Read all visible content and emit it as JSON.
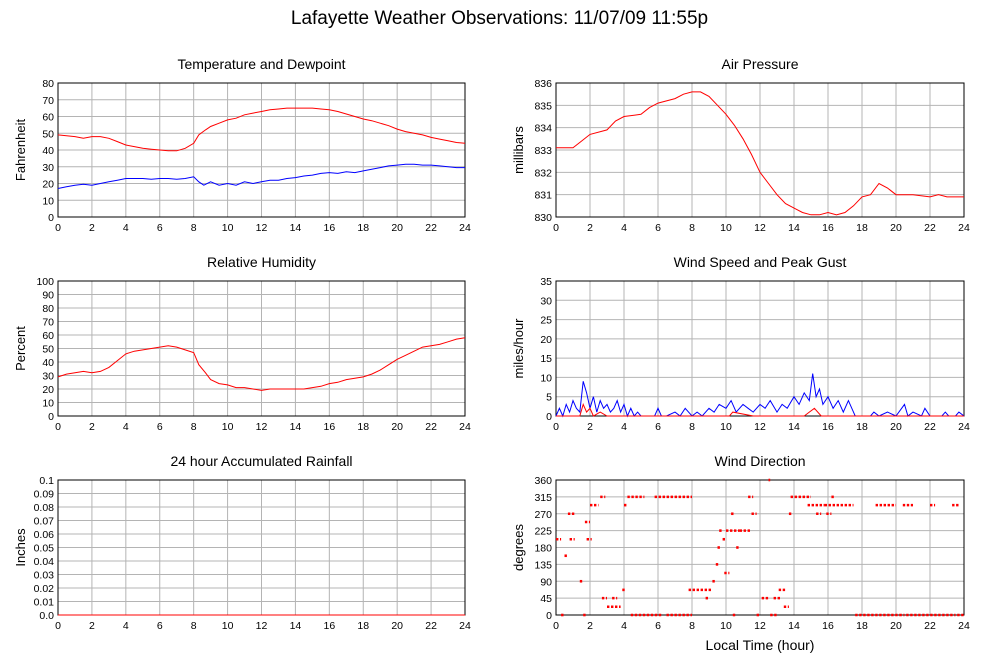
{
  "page": {
    "title": "Lafayette Weather Observations: 11/07/09 11:55p"
  },
  "colors": {
    "red": "#ff0000",
    "blue": "#0000ff",
    "grid": "#b4b4b4"
  },
  "chart_data": [
    {
      "id": "temperature",
      "type": "line",
      "title": "Temperature and Dewpoint",
      "ylabel": "Fahrenheit",
      "xlabel": "",
      "xlim": [
        0,
        24
      ],
      "ylim": [
        0,
        80
      ],
      "xticks": [
        0,
        2,
        4,
        6,
        8,
        10,
        12,
        14,
        16,
        18,
        20,
        22,
        24
      ],
      "yticks": [
        0,
        10,
        20,
        30,
        40,
        50,
        60,
        70,
        80
      ],
      "series": [
        {
          "color": "#ff0000",
          "x": [
            0,
            1,
            1.5,
            2,
            2.5,
            3,
            3.5,
            4,
            4.5,
            5,
            5.5,
            6,
            6.5,
            7,
            7.5,
            8,
            8.3,
            8.7,
            9,
            9.5,
            10,
            10.5,
            11,
            11.5,
            12,
            12.5,
            13,
            13.5,
            14,
            14.5,
            15,
            15.5,
            16,
            16.5,
            17,
            17.5,
            18,
            18.5,
            19,
            19.5,
            20,
            20.5,
            21,
            21.5,
            22,
            22.5,
            23,
            23.5,
            24
          ],
          "y": [
            49,
            48,
            47,
            48,
            48,
            47,
            45,
            43,
            42,
            41,
            40.5,
            40,
            39.5,
            39.5,
            41,
            44,
            49,
            52,
            54,
            56,
            58,
            59,
            61,
            62,
            63,
            64,
            64.5,
            65,
            65,
            65,
            65,
            64.5,
            64,
            63,
            61.5,
            60,
            58.5,
            57.5,
            56,
            54.5,
            52.5,
            51,
            50,
            49,
            47.5,
            46.5,
            45.5,
            44.5,
            44
          ]
        },
        {
          "color": "#0000ff",
          "x": [
            0,
            0.5,
            1,
            1.5,
            2,
            2.5,
            3,
            3.5,
            4,
            4.5,
            5,
            5.5,
            6,
            6.5,
            7,
            7.5,
            8,
            8.3,
            8.6,
            9,
            9.5,
            10,
            10.5,
            11,
            11.5,
            12,
            12.5,
            13,
            13.5,
            14,
            14.5,
            15,
            15.5,
            16,
            16.5,
            17,
            17.5,
            18,
            18.5,
            19,
            19.5,
            20,
            20.5,
            21,
            21.5,
            22,
            22.5,
            23,
            23.5,
            24
          ],
          "y": [
            17,
            18,
            19,
            19.5,
            19,
            20,
            21,
            22,
            23,
            23,
            23,
            22.5,
            23,
            23,
            22.5,
            23,
            24,
            21,
            19,
            21,
            19,
            20,
            19,
            21,
            20,
            21,
            22,
            22,
            23,
            23.5,
            24.5,
            25,
            26,
            26.5,
            26,
            27,
            26.5,
            27.5,
            28.5,
            29.5,
            30.5,
            31,
            31.5,
            31.5,
            31,
            31,
            30.5,
            30,
            29.5,
            29.5
          ]
        }
      ]
    },
    {
      "id": "pressure",
      "type": "line",
      "title": "Air Pressure",
      "ylabel": "millibars",
      "xlabel": "",
      "xlim": [
        0,
        24
      ],
      "ylim": [
        830,
        836
      ],
      "xticks": [
        0,
        2,
        4,
        6,
        8,
        10,
        12,
        14,
        16,
        18,
        20,
        22,
        24
      ],
      "yticks": [
        830,
        831,
        832,
        833,
        834,
        835,
        836
      ],
      "series": [
        {
          "color": "#ff0000",
          "x": [
            0,
            1,
            1.5,
            2,
            3,
            3.5,
            4,
            5,
            5.5,
            6,
            7,
            7.5,
            8,
            8.5,
            9,
            9.5,
            10,
            10.5,
            11,
            11.5,
            12,
            12.5,
            13,
            13.5,
            14,
            14.5,
            15,
            15.5,
            16,
            16.5,
            17,
            17.5,
            18,
            18.5,
            19,
            19.5,
            20,
            21,
            22,
            22.5,
            23,
            24
          ],
          "y": [
            833.1,
            833.1,
            833.4,
            833.7,
            833.9,
            834.3,
            834.5,
            834.6,
            834.9,
            835.1,
            835.3,
            835.5,
            835.6,
            835.6,
            835.4,
            835.0,
            834.6,
            834.1,
            833.5,
            832.8,
            832.0,
            831.5,
            831.0,
            830.6,
            830.4,
            830.2,
            830.1,
            830.1,
            830.2,
            830.1,
            830.2,
            830.5,
            830.9,
            831.0,
            831.5,
            831.3,
            831.0,
            831.0,
            830.9,
            831.0,
            830.9,
            830.9
          ]
        }
      ]
    },
    {
      "id": "humidity",
      "type": "line",
      "title": "Relative Humidity",
      "ylabel": "Percent",
      "xlabel": "",
      "xlim": [
        0,
        24
      ],
      "ylim": [
        0,
        100
      ],
      "xticks": [
        0,
        2,
        4,
        6,
        8,
        10,
        12,
        14,
        16,
        18,
        20,
        22,
        24
      ],
      "yticks": [
        0,
        10,
        20,
        30,
        40,
        50,
        60,
        70,
        80,
        90,
        100
      ],
      "series": [
        {
          "color": "#ff0000",
          "x": [
            0,
            0.5,
            1,
            1.5,
            2,
            2.5,
            3,
            3.5,
            4,
            4.5,
            5,
            5.5,
            6,
            6.5,
            7,
            7.5,
            8,
            8.3,
            8.7,
            9,
            9.5,
            10,
            10.5,
            11,
            11.5,
            12,
            12.5,
            13,
            13.5,
            14,
            14.5,
            15,
            15.5,
            16,
            16.5,
            17,
            17.5,
            18,
            18.5,
            19,
            19.5,
            20,
            20.5,
            21,
            21.5,
            22,
            22.5,
            23,
            23.5,
            24
          ],
          "y": [
            29,
            31,
            32,
            33,
            32,
            33,
            36,
            41,
            46,
            48,
            49,
            50,
            51,
            52,
            51,
            49,
            47,
            38,
            32,
            27,
            24,
            23,
            21,
            21,
            20,
            19,
            20,
            20,
            20,
            20,
            20,
            21,
            22,
            24,
            25,
            27,
            28,
            29,
            31,
            34,
            38,
            42,
            45,
            48,
            51,
            52,
            53,
            55,
            57,
            58
          ]
        }
      ]
    },
    {
      "id": "wind",
      "type": "line",
      "title": "Wind Speed and Peak Gust",
      "ylabel": "miles/hour",
      "xlabel": "",
      "xlim": [
        0,
        24
      ],
      "ylim": [
        0,
        35
      ],
      "xticks": [
        0,
        2,
        4,
        6,
        8,
        10,
        12,
        14,
        16,
        18,
        20,
        22,
        24
      ],
      "yticks": [
        0,
        5,
        10,
        15,
        20,
        25,
        30,
        35
      ],
      "series": [
        {
          "color": "#0000ff",
          "x": [
            0,
            0.2,
            0.4,
            0.6,
            0.8,
            1.0,
            1.2,
            1.4,
            1.6,
            1.8,
            2.0,
            2.2,
            2.4,
            2.6,
            2.8,
            3.0,
            3.2,
            3.4,
            3.6,
            3.8,
            4.0,
            4.2,
            4.4,
            4.6,
            4.8,
            5.0,
            5.5,
            5.8,
            6.0,
            6.2,
            6.5,
            7.0,
            7.3,
            7.6,
            8.0,
            8.3,
            8.6,
            9.0,
            9.3,
            9.6,
            10.0,
            10.3,
            10.6,
            11.0,
            11.3,
            11.6,
            12.0,
            12.3,
            12.6,
            13.0,
            13.3,
            13.6,
            14.0,
            14.3,
            14.6,
            14.9,
            15.1,
            15.3,
            15.5,
            15.7,
            16.0,
            16.3,
            16.6,
            16.9,
            17.2,
            17.4,
            17.6,
            18.5,
            18.7,
            19.0,
            19.5,
            20.0,
            20.5,
            20.7,
            21.0,
            21.5,
            21.7,
            22.0,
            22.7,
            22.9,
            23.1,
            23.5,
            23.7,
            24
          ],
          "y": [
            0,
            2,
            0,
            3,
            1,
            4,
            2,
            1,
            9,
            6,
            2,
            5,
            1,
            4,
            2,
            3,
            1,
            2,
            4,
            1,
            3,
            0,
            2,
            0,
            1,
            0,
            0,
            0,
            2,
            0,
            0,
            1,
            0,
            2,
            0,
            1,
            0,
            2,
            1,
            3,
            2,
            4,
            1,
            3,
            2,
            1,
            3,
            2,
            4,
            1,
            3,
            2,
            5,
            3,
            6,
            4,
            11,
            5,
            7,
            3,
            5,
            2,
            4,
            1,
            4,
            2,
            0,
            0,
            1,
            0,
            1,
            0,
            3,
            0,
            1,
            0,
            2,
            0,
            0,
            1,
            0,
            0,
            1,
            0
          ]
        },
        {
          "color": "#ff0000",
          "x": [
            0,
            1.4,
            1.6,
            1.8,
            2.0,
            2.2,
            2.6,
            3.0,
            3.4,
            9.0,
            10.2,
            10.4,
            11.6,
            12.0,
            14.6,
            14.9,
            15.2,
            15.6,
            16.0,
            24
          ],
          "y": [
            0,
            0,
            3,
            1,
            2,
            0,
            1,
            0,
            0,
            0,
            0,
            1,
            0,
            0,
            0,
            1,
            2,
            0,
            0,
            0
          ]
        }
      ]
    },
    {
      "id": "rainfall",
      "type": "line",
      "title": "24 hour Accumulated Rainfall",
      "ylabel": "Inches",
      "xlabel": "",
      "xlim": [
        0,
        24
      ],
      "ylim": [
        0,
        0.1
      ],
      "xticks": [
        0,
        2,
        4,
        6,
        8,
        10,
        12,
        14,
        16,
        18,
        20,
        22,
        24
      ],
      "yticks": [
        "0.0",
        "0.01",
        "0.02",
        "0.03",
        "0.04",
        "0.05",
        "0.06",
        "0.07",
        "0.08",
        "0.09",
        "0.1"
      ],
      "series": [
        {
          "color": "#ff0000",
          "x": [
            0,
            24
          ],
          "y": [
            0,
            0
          ]
        }
      ]
    },
    {
      "id": "direction",
      "type": "scatter",
      "title": "Wind Direction",
      "ylabel": "degrees",
      "xlabel": "Local Time (hour)",
      "xlim": [
        0,
        24
      ],
      "ylim": [
        0,
        360
      ],
      "xticks": [
        0,
        2,
        4,
        6,
        8,
        10,
        12,
        14,
        16,
        18,
        20,
        22,
        24
      ],
      "yticks": [
        0,
        45,
        90,
        135,
        180,
        225,
        270,
        315,
        360
      ],
      "series": [
        {
          "color": "#ff0000",
          "segments": [
            [
              0.0,
              0.3,
              202
            ],
            [
              0.3,
              0.5,
              0
            ],
            [
              0.5,
              0.7,
              158
            ],
            [
              0.7,
              1.1,
              270
            ],
            [
              0.8,
              1.1,
              202
            ],
            [
              1.4,
              1.6,
              90
            ],
            [
              1.6,
              1.8,
              0
            ],
            [
              1.7,
              2.0,
              248
            ],
            [
              1.8,
              2.1,
              202
            ],
            [
              2.0,
              2.5,
              293
            ],
            [
              2.6,
              2.9,
              315
            ],
            [
              2.7,
              3.0,
              45
            ],
            [
              3.0,
              3.8,
              22
            ],
            [
              3.3,
              3.6,
              45
            ],
            [
              3.9,
              4.1,
              67
            ],
            [
              4.0,
              4.2,
              293
            ],
            [
              4.2,
              5.2,
              315
            ],
            [
              4.4,
              6.2,
              0
            ],
            [
              5.8,
              8.0,
              315
            ],
            [
              6.5,
              8.0,
              0
            ],
            [
              7.8,
              9.2,
              67
            ],
            [
              8.8,
              9.0,
              45
            ],
            [
              9.2,
              9.4,
              90
            ],
            [
              9.4,
              9.6,
              135
            ],
            [
              9.5,
              9.7,
              180
            ],
            [
              9.6,
              9.8,
              225
            ],
            [
              9.8,
              10.0,
              202
            ],
            [
              9.9,
              10.2,
              112
            ],
            [
              10.0,
              10.8,
              225
            ],
            [
              10.3,
              10.5,
              270
            ],
            [
              10.4,
              10.6,
              0
            ],
            [
              10.6,
              10.8,
              180
            ],
            [
              10.8,
              11.5,
              225
            ],
            [
              11.3,
              11.6,
              315
            ],
            [
              11.5,
              11.8,
              270
            ],
            [
              11.8,
              12.0,
              0
            ],
            [
              12.1,
              12.5,
              45
            ],
            [
              12.5,
              12.6,
              360
            ],
            [
              12.6,
              13.0,
              0
            ],
            [
              12.8,
              13.2,
              45
            ],
            [
              13.1,
              13.5,
              67
            ],
            [
              13.4,
              13.7,
              22
            ],
            [
              13.7,
              13.9,
              270
            ],
            [
              13.8,
              15.0,
              315
            ],
            [
              14.8,
              15.8,
              293
            ],
            [
              15.3,
              15.6,
              270
            ],
            [
              15.9,
              16.2,
              270
            ],
            [
              15.8,
              17.5,
              293
            ],
            [
              16.2,
              16.4,
              315
            ],
            [
              17.6,
              20.2,
              0
            ],
            [
              18.8,
              20.0,
              293
            ],
            [
              20.2,
              20.5,
              0
            ],
            [
              20.4,
              21.0,
              293
            ],
            [
              20.6,
              23.5,
              0
            ],
            [
              22.0,
              22.3,
              293
            ],
            [
              23.3,
              23.7,
              293
            ],
            [
              23.6,
              24.0,
              0
            ]
          ]
        }
      ]
    }
  ]
}
